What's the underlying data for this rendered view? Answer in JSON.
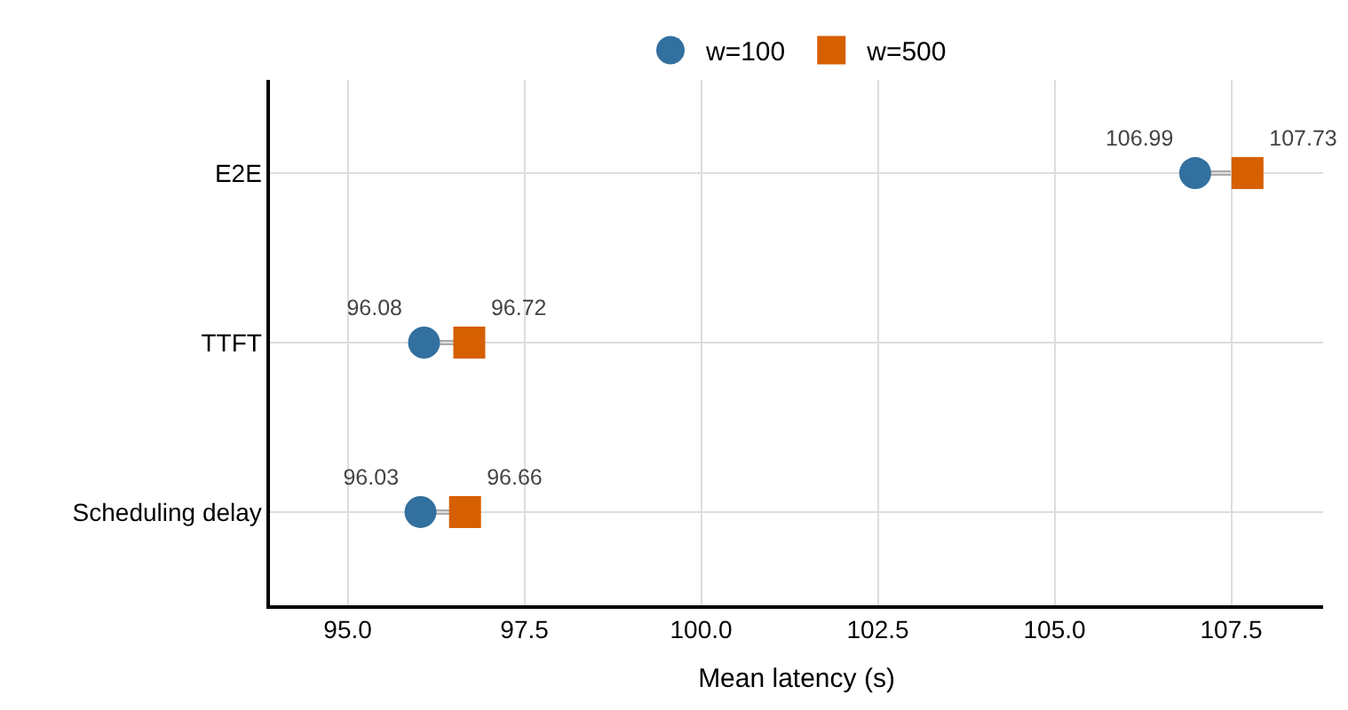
{
  "chart_data": {
    "type": "scatter",
    "xlabel": "Mean latency (s)",
    "orientation": "horizontal",
    "categories": [
      "E2E",
      "TTFT",
      "Scheduling delay"
    ],
    "series": [
      {
        "name": "w=100",
        "color": "#32709f",
        "marker": "circle",
        "values": [
          106.99,
          96.08,
          96.03
        ]
      },
      {
        "name": "w=500",
        "color": "#d65f00",
        "marker": "square",
        "values": [
          107.73,
          96.72,
          96.66
        ]
      }
    ],
    "xlim": [
      93.9,
      108.8
    ],
    "xticks": [
      {
        "value": 95,
        "label": "95.0"
      },
      {
        "value": 97.5,
        "label": "97.5"
      },
      {
        "value": 100,
        "label": "100.0"
      },
      {
        "value": 102.5,
        "label": "102.5"
      },
      {
        "value": 105,
        "label": "105.0"
      },
      {
        "value": 107.5,
        "label": "107.5"
      }
    ],
    "grid": true,
    "legend": "top",
    "data_labels": true
  }
}
